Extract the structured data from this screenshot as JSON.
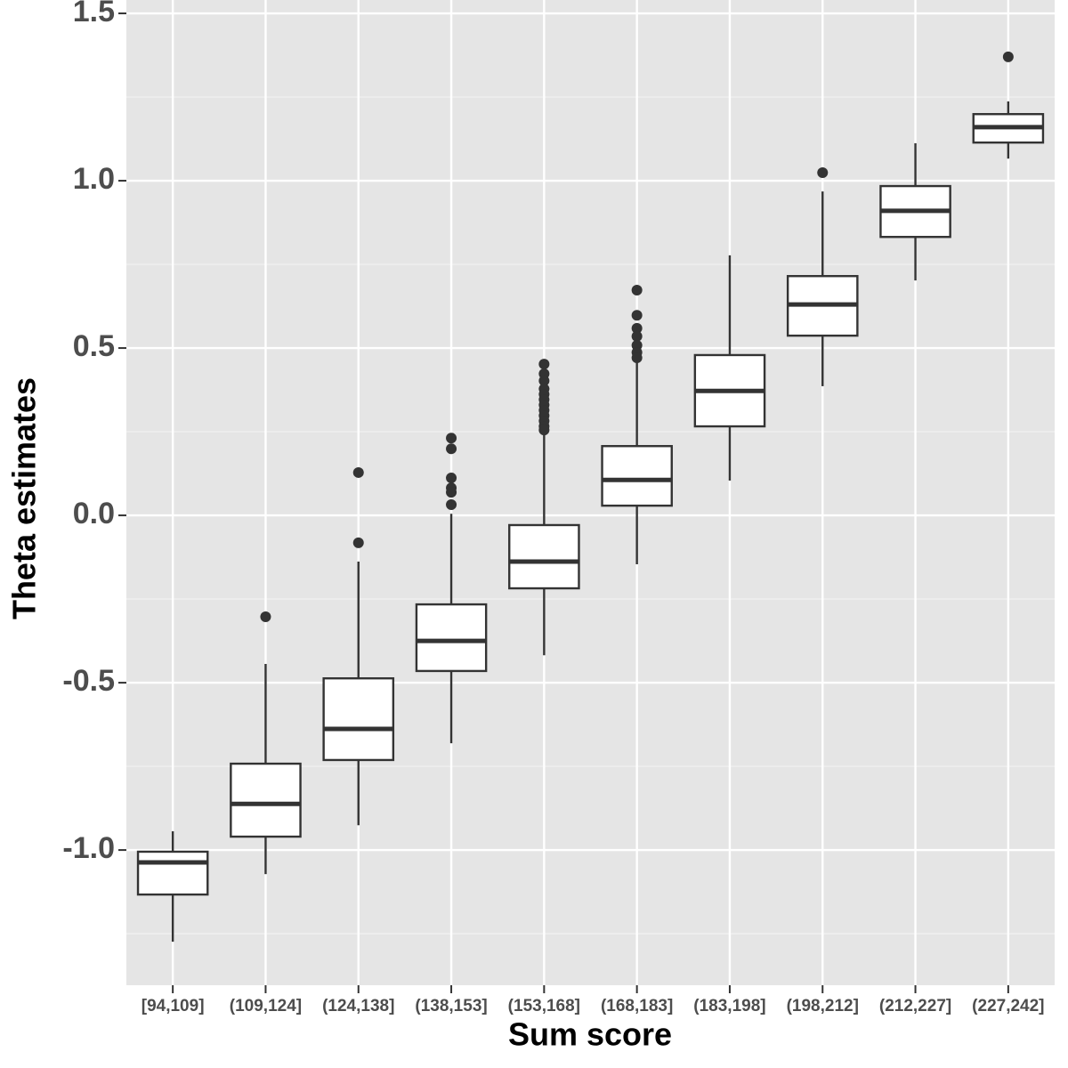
{
  "chart_data": {
    "type": "box",
    "x_label": "Sum score",
    "y_label": "Theta estimates",
    "categories": [
      "[94,109]",
      "(109,124]",
      "(124,138]",
      "(138,153]",
      "(153,168]",
      "(168,183]",
      "(183,198]",
      "(198,212]",
      "(212,227]",
      "(227,242]"
    ],
    "boxes": [
      {
        "whisker_low": -1.274,
        "q1": -1.133,
        "median": -1.037,
        "q3": -1.005,
        "whisker_high": -0.944,
        "outliers": []
      },
      {
        "whisker_low": -1.072,
        "q1": -0.96,
        "median": -0.862,
        "q3": -0.742,
        "whisker_high": -0.444,
        "outliers": [
          -0.303
        ]
      },
      {
        "whisker_low": -0.926,
        "q1": -0.731,
        "median": -0.638,
        "q3": -0.487,
        "whisker_high": -0.138,
        "outliers": [
          0.128,
          -0.082
        ]
      },
      {
        "whisker_low": -0.681,
        "q1": -0.465,
        "median": -0.375,
        "q3": -0.266,
        "whisker_high": 0.005,
        "outliers": [
          0.231,
          0.199,
          0.112,
          0.082,
          0.069,
          0.032
        ]
      },
      {
        "whisker_low": -0.418,
        "q1": -0.218,
        "median": -0.138,
        "q3": -0.029,
        "whisker_high": 0.242,
        "outliers": [
          0.452,
          0.423,
          0.402,
          0.378,
          0.362,
          0.346,
          0.33,
          0.314,
          0.298,
          0.282,
          0.266,
          0.255
        ]
      },
      {
        "whisker_low": -0.146,
        "q1": 0.029,
        "median": 0.106,
        "q3": 0.207,
        "whisker_high": 0.457,
        "outliers": [
          0.673,
          0.598,
          0.559,
          0.535,
          0.508,
          0.487,
          0.471
        ]
      },
      {
        "whisker_low": 0.104,
        "q1": 0.266,
        "median": 0.372,
        "q3": 0.479,
        "whisker_high": 0.777,
        "outliers": []
      },
      {
        "whisker_low": 0.386,
        "q1": 0.537,
        "median": 0.63,
        "q3": 0.715,
        "whisker_high": 0.968,
        "outliers": [
          1.024
        ]
      },
      {
        "whisker_low": 0.702,
        "q1": 0.832,
        "median": 0.91,
        "q3": 0.984,
        "whisker_high": 1.112,
        "outliers": []
      },
      {
        "whisker_low": 1.066,
        "q1": 1.114,
        "median": 1.16,
        "q3": 1.199,
        "whisker_high": 1.237,
        "outliers": [
          1.37
        ]
      }
    ],
    "box_fill": "#ffffff",
    "line_color": "#333333",
    "panel_color": "#e5e5e5",
    "grid": true,
    "ylim": [
      -1.404,
      1.54
    ],
    "yticks": [
      {
        "value": -1,
        "label": "-1.0"
      },
      {
        "value": -0.5,
        "label": "-0.5"
      },
      {
        "value": 0,
        "label": "0.0"
      },
      {
        "value": 0.5,
        "label": "0.5"
      },
      {
        "value": 1,
        "label": "1.0"
      },
      {
        "value": 1.5,
        "label": "1.5"
      }
    ],
    "minor_yticks": [
      -1.25,
      -0.75,
      -0.25,
      0.25,
      0.75,
      1.25
    ]
  }
}
